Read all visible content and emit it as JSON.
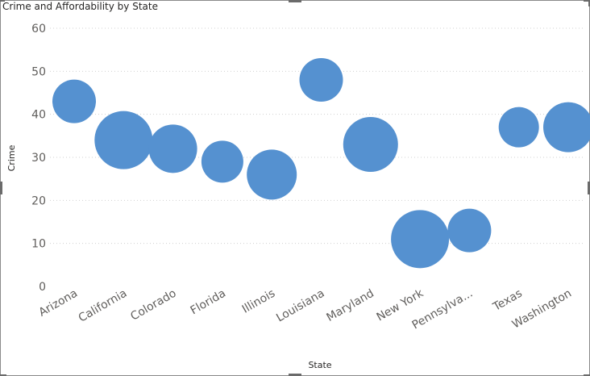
{
  "visual": {
    "title": "Crime and Affordability by State"
  },
  "colors": {
    "bubble": "#5591d0",
    "grid": "#d0d0d0",
    "tick_text": "#605e5c"
  },
  "chart_data": {
    "type": "scatter",
    "title": "Crime and Affordability by State",
    "xlabel": "State",
    "ylabel": "Crime",
    "ylim": [
      0,
      60
    ],
    "yticks": [
      0,
      10,
      20,
      30,
      40,
      50,
      60
    ],
    "grid": true,
    "legend": "none",
    "categories": [
      "Arizona",
      "California",
      "Colorado",
      "Florida",
      "Illinois",
      "Louisiana",
      "Maryland",
      "New York",
      "Pennsylva...",
      "Texas",
      "Washington"
    ],
    "series": [
      {
        "values": [
          43,
          34,
          32,
          29,
          26,
          48,
          33,
          11,
          13,
          37,
          37
        ],
        "size": [
          27,
          36,
          30,
          26,
          31,
          27,
          34,
          36,
          27,
          25,
          31
        ]
      }
    ]
  }
}
